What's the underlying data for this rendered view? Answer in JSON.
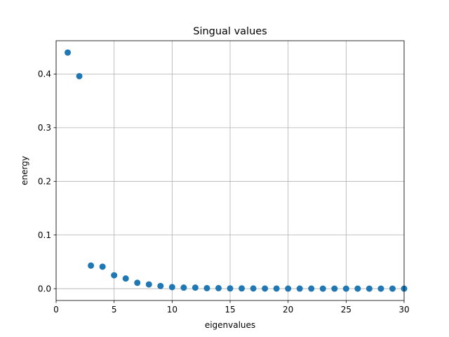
{
  "chart_data": {
    "type": "scatter",
    "title": "Singual values",
    "xlabel": "eigenvalues",
    "ylabel": "energy",
    "xlim": [
      0,
      30
    ],
    "ylim": [
      -0.022,
      0.462
    ],
    "xticks": [
      0,
      5,
      10,
      15,
      20,
      25,
      30
    ],
    "xtick_labels": [
      "0",
      "5",
      "10",
      "15",
      "20",
      "25",
      "30"
    ],
    "yticks": [
      0.0,
      0.1,
      0.2,
      0.3,
      0.4
    ],
    "ytick_labels": [
      "0.0",
      "0.1",
      "0.2",
      "0.3",
      "0.4"
    ],
    "grid": true,
    "marker_color": "#1f77b4",
    "series": [
      {
        "x": [
          1,
          2,
          3,
          4,
          5,
          6,
          7,
          8,
          9,
          10,
          11,
          12,
          13,
          14,
          15,
          16,
          17,
          18,
          19,
          20,
          21,
          22,
          23,
          24,
          25,
          26,
          27,
          28,
          29,
          30
        ],
        "values": [
          0.44,
          0.396,
          0.043,
          0.041,
          0.025,
          0.019,
          0.011,
          0.008,
          0.005,
          0.003,
          0.002,
          0.002,
          0.001,
          0.001,
          0.0005,
          0.0005,
          0.0004,
          0.0003,
          0.0003,
          0.0002,
          0.0002,
          0.0002,
          0.0001,
          0.0001,
          0.0001,
          0.0001,
          0.0001,
          0.0001,
          0.0001,
          0.0001
        ]
      }
    ]
  }
}
